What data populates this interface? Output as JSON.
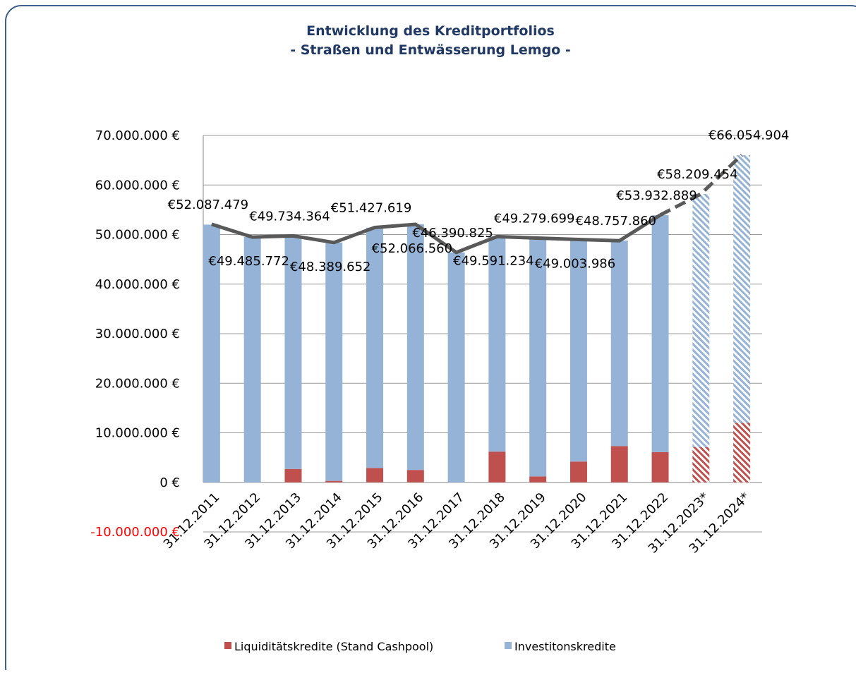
{
  "chart_data": {
    "type": "stacked_bar_line",
    "title": [
      "Entwicklung des Kreditportfolios",
      "- Straßen und Entwässerung Lemgo -"
    ],
    "categories": [
      "31.12.2011",
      "31.12.2012",
      "31.12.2013",
      "31.12.2014",
      "31.12.2015",
      "31.12.2016",
      "31.12.2017",
      "31.12.2018",
      "31.12.2019",
      "31.12.2020",
      "31.12.2021",
      "31.12.2022",
      "31.12.2023*",
      "31.12.2024*"
    ],
    "series": [
      {
        "name": "Liquiditätskredite (Stand Cashpool)",
        "color": "#c0504d",
        "values": [
          0,
          0,
          2700000,
          300000,
          2900000,
          2500000,
          0,
          6200000,
          1200000,
          4200000,
          7300000,
          6100000,
          7100000,
          12000000
        ]
      },
      {
        "name": "Investitonskredite",
        "color": "#95b3d7",
        "values": [
          52000000,
          49500000,
          47000000,
          48100000,
          48500000,
          49600000,
          46400000,
          43400000,
          48100000,
          44800000,
          41500000,
          47800000,
          51100000,
          54000000
        ]
      }
    ],
    "line": {
      "color": "#595959",
      "values": [
        52087479,
        49485772,
        49734364,
        48389652,
        51427619,
        52066560,
        46390825,
        49591234,
        49279699,
        49003986,
        48757860,
        53932889,
        58209454,
        66054904
      ],
      "value_labels": [
        "€52.087.479",
        "€49.485.772",
        "€49.734.364",
        "€48.389.652",
        "€51.427.619",
        "€52.066.560",
        "€46.390.825",
        "€49.591.234",
        "€49.279.699",
        "€49.003.986",
        "€48.757.860",
        "€53.932.889",
        "€58.209.454",
        "€66.054.904"
      ]
    },
    "forecast_start": 12,
    "ylim": [
      -10000000,
      70000000
    ],
    "yticks": [
      {
        "value": -10000000,
        "label": "-10.000.000 €"
      },
      {
        "value": 0,
        "label": "0 €"
      },
      {
        "value": 10000000,
        "label": "10.000.000 €"
      },
      {
        "value": 20000000,
        "label": "20.000.000 €"
      },
      {
        "value": 30000000,
        "label": "30.000.000 €"
      },
      {
        "value": 40000000,
        "label": "40.000.000 €"
      },
      {
        "value": 50000000,
        "label": "50.000.000 €"
      },
      {
        "value": 60000000,
        "label": "60.000.000 €"
      },
      {
        "value": 70000000,
        "label": "70.000.000 €"
      }
    ],
    "negative_tick_color": "#ff0000",
    "grid": true
  }
}
